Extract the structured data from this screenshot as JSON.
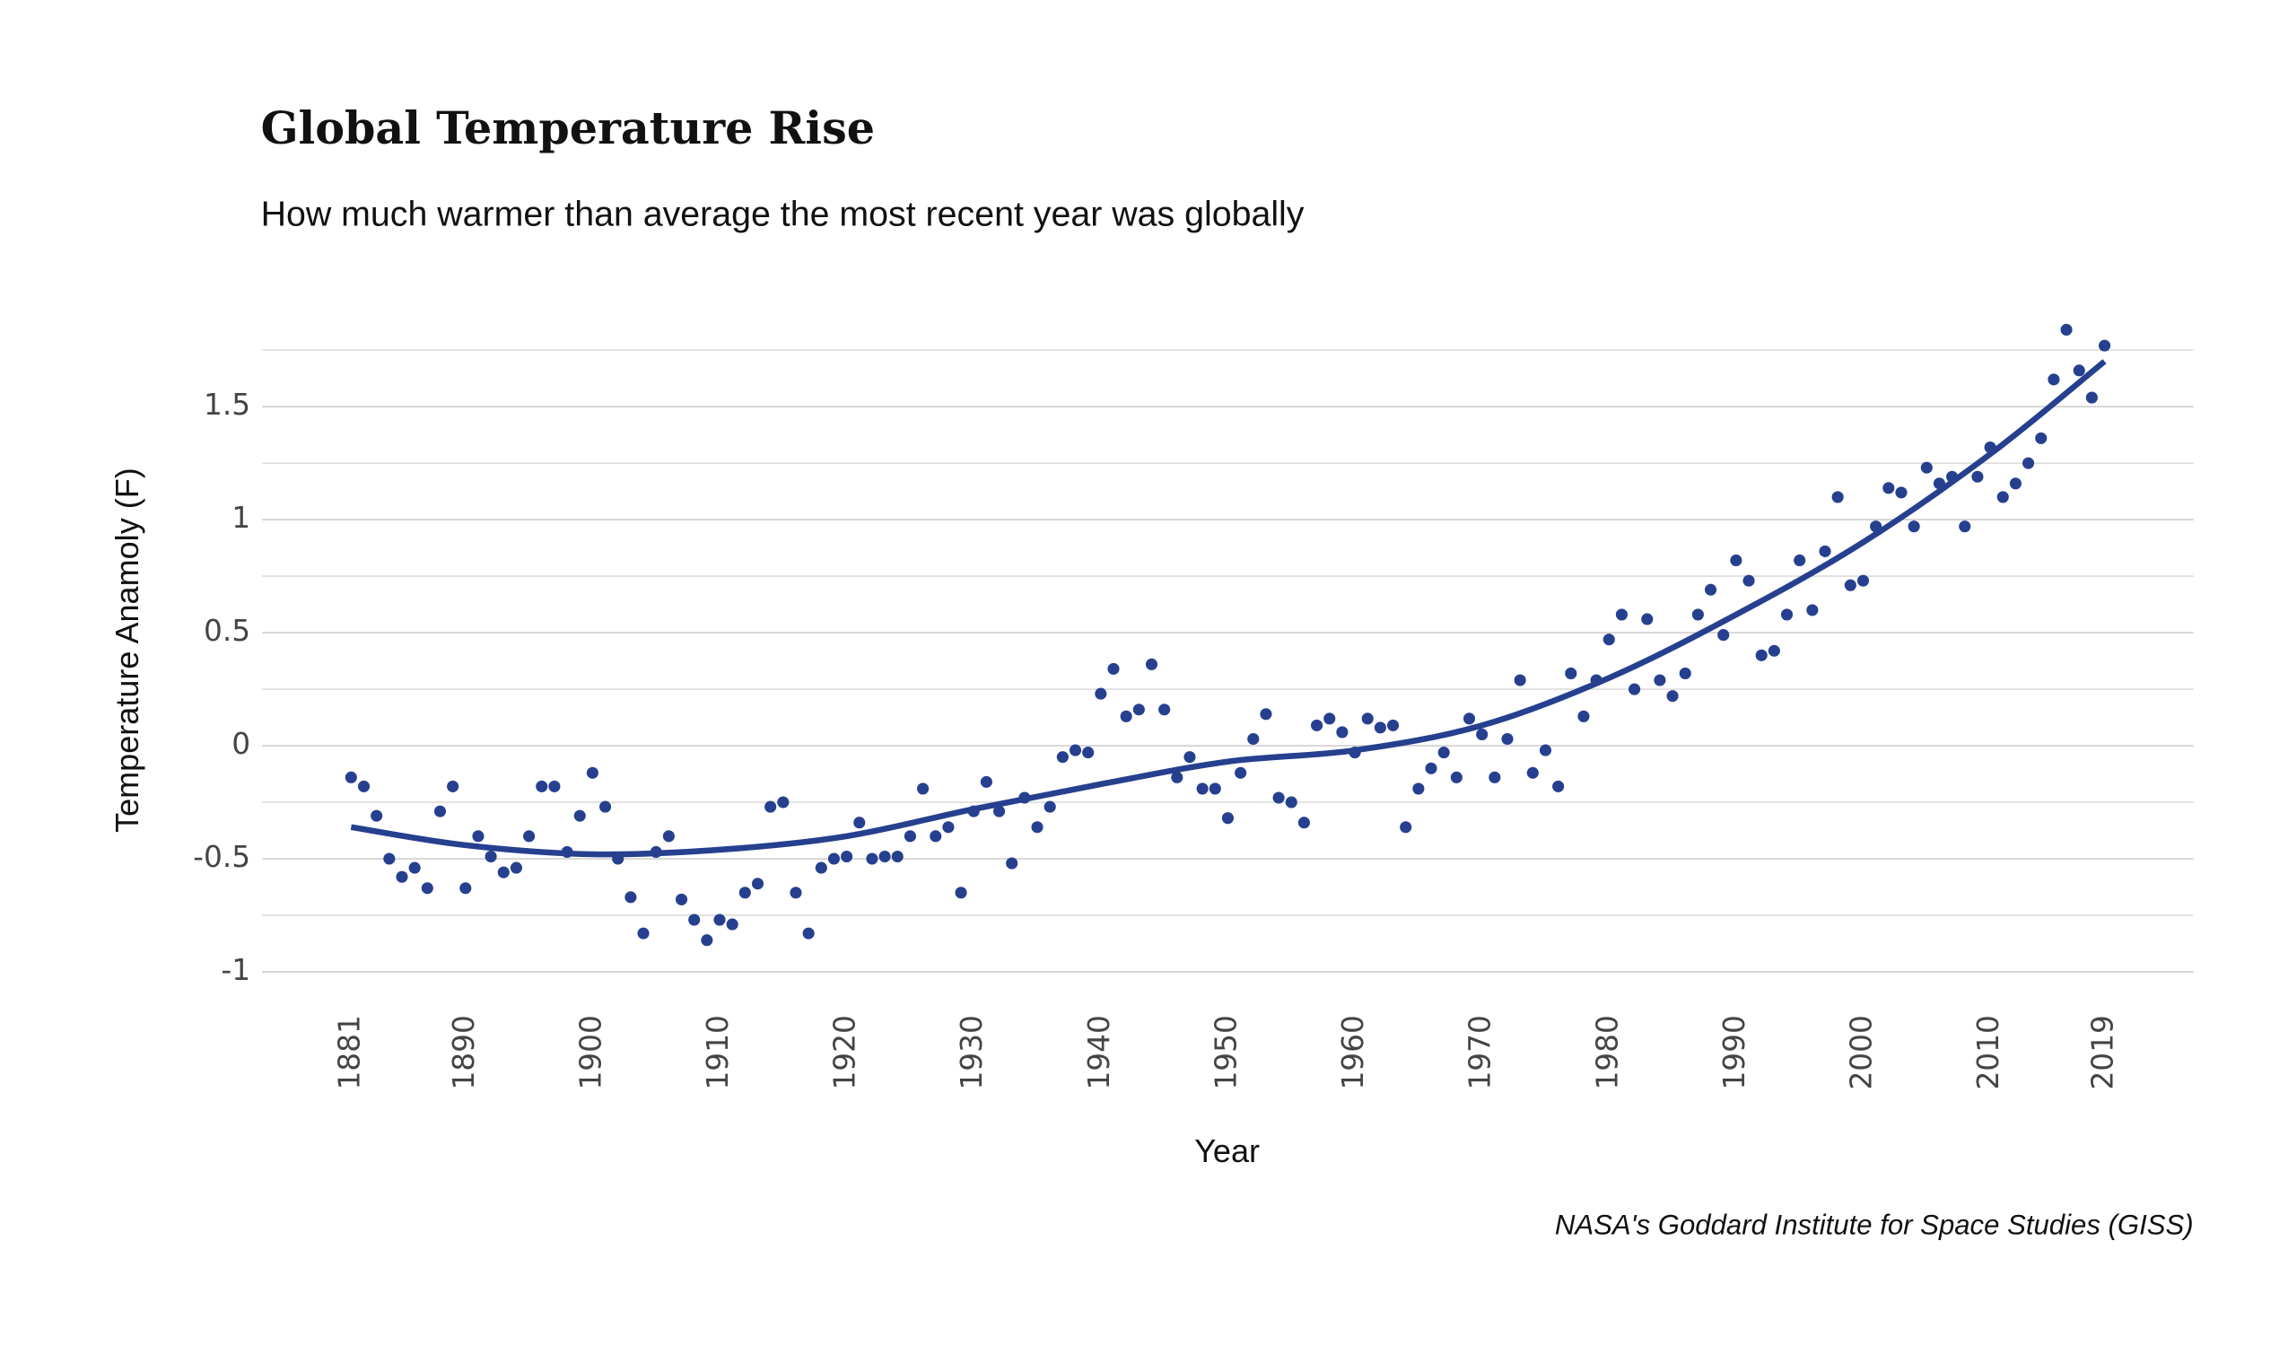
{
  "chart_data": {
    "type": "scatter",
    "title": "Global Temperature Rise",
    "subtitle": "How much warmer than average the most recent year was globally",
    "x_label": "Year",
    "y_label": "Temperature Anamoly  (F)",
    "source": "NASA's Goddard Institute for Space Studies (GISS)",
    "x": [
      1881,
      1882,
      1883,
      1884,
      1885,
      1886,
      1887,
      1888,
      1889,
      1890,
      1891,
      1892,
      1893,
      1894,
      1895,
      1896,
      1897,
      1898,
      1899,
      1900,
      1901,
      1902,
      1903,
      1904,
      1905,
      1906,
      1907,
      1908,
      1909,
      1910,
      1911,
      1912,
      1913,
      1914,
      1915,
      1916,
      1917,
      1918,
      1919,
      1920,
      1921,
      1922,
      1923,
      1924,
      1925,
      1926,
      1927,
      1928,
      1929,
      1930,
      1931,
      1932,
      1933,
      1934,
      1935,
      1936,
      1937,
      1938,
      1939,
      1940,
      1941,
      1942,
      1943,
      1944,
      1945,
      1946,
      1947,
      1948,
      1949,
      1950,
      1951,
      1952,
      1953,
      1954,
      1955,
      1956,
      1957,
      1958,
      1959,
      1960,
      1961,
      1962,
      1963,
      1964,
      1965,
      1966,
      1967,
      1968,
      1969,
      1970,
      1971,
      1972,
      1973,
      1974,
      1975,
      1976,
      1977,
      1978,
      1979,
      1980,
      1981,
      1982,
      1983,
      1984,
      1985,
      1986,
      1987,
      1988,
      1989,
      1990,
      1991,
      1992,
      1993,
      1994,
      1995,
      1996,
      1997,
      1998,
      1999,
      2000,
      2001,
      2002,
      2003,
      2004,
      2005,
      2006,
      2007,
      2008,
      2009,
      2010,
      2011,
      2012,
      2013,
      2014,
      2015,
      2016,
      2017,
      2018,
      2019
    ],
    "series": [
      {
        "color": "#26408f",
        "values": [
          -0.14,
          -0.18,
          -0.31,
          -0.5,
          -0.58,
          -0.54,
          -0.63,
          -0.29,
          -0.18,
          -0.63,
          -0.4,
          -0.49,
          -0.56,
          -0.54,
          -0.4,
          -0.18,
          -0.18,
          -0.47,
          -0.31,
          -0.12,
          -0.27,
          -0.5,
          -0.67,
          -0.83,
          -0.47,
          -0.4,
          -0.68,
          -0.77,
          -0.86,
          -0.77,
          -0.79,
          -0.65,
          -0.61,
          -0.27,
          -0.25,
          -0.65,
          -0.83,
          -0.54,
          -0.5,
          -0.49,
          -0.34,
          -0.5,
          -0.49,
          -0.49,
          -0.4,
          -0.19,
          -0.4,
          -0.36,
          -0.65,
          -0.29,
          -0.16,
          -0.29,
          -0.52,
          -0.23,
          -0.36,
          -0.27,
          -0.05,
          -0.02,
          -0.03,
          0.23,
          0.34,
          0.13,
          0.16,
          0.36,
          0.16,
          -0.14,
          -0.05,
          -0.19,
          -0.19,
          -0.32,
          -0.12,
          0.03,
          0.14,
          -0.23,
          -0.25,
          -0.34,
          0.09,
          0.12,
          0.06,
          -0.03,
          0.12,
          0.08,
          0.09,
          -0.36,
          -0.19,
          -0.1,
          -0.03,
          -0.14,
          0.12,
          0.05,
          -0.14,
          0.03,
          0.29,
          -0.12,
          -0.02,
          -0.18,
          0.32,
          0.13,
          0.29,
          0.47,
          0.58,
          0.25,
          0.56,
          0.29,
          0.22,
          0.32,
          0.58,
          0.69,
          0.49,
          0.82,
          0.73,
          0.4,
          0.42,
          0.58,
          0.82,
          0.6,
          0.86,
          1.1,
          0.71,
          0.73,
          0.97,
          1.14,
          1.12,
          0.97,
          1.23,
          1.16,
          1.19,
          0.97,
          1.19,
          1.32,
          1.1,
          1.16,
          1.25,
          1.36,
          1.62,
          1.84,
          1.66,
          1.54,
          1.77
        ]
      }
    ],
    "trend": {
      "color": "#26408f",
      "x": [
        1881,
        1890,
        1900,
        1910,
        1920,
        1930,
        1940,
        1950,
        1960,
        1970,
        1980,
        1990,
        2000,
        2010,
        2019
      ],
      "values": [
        -0.36,
        -0.44,
        -0.48,
        -0.46,
        -0.4,
        -0.28,
        -0.17,
        -0.07,
        -0.02,
        0.09,
        0.3,
        0.58,
        0.9,
        1.29,
        1.7
      ]
    },
    "xlim": [
      1874,
      2026
    ],
    "xticks": [
      1881,
      1890,
      1900,
      1910,
      1920,
      1930,
      1940,
      1950,
      1960,
      1970,
      1980,
      1990,
      2000,
      2010,
      2019
    ],
    "ylim": [
      -1.1,
      1.75
    ],
    "yticks": [
      -1,
      -0.5,
      0,
      0.5,
      1,
      1.5
    ],
    "minor_gridlines": [
      -0.75,
      -0.25,
      0.25,
      0.75,
      1.25,
      1.75
    ],
    "grid": true
  }
}
